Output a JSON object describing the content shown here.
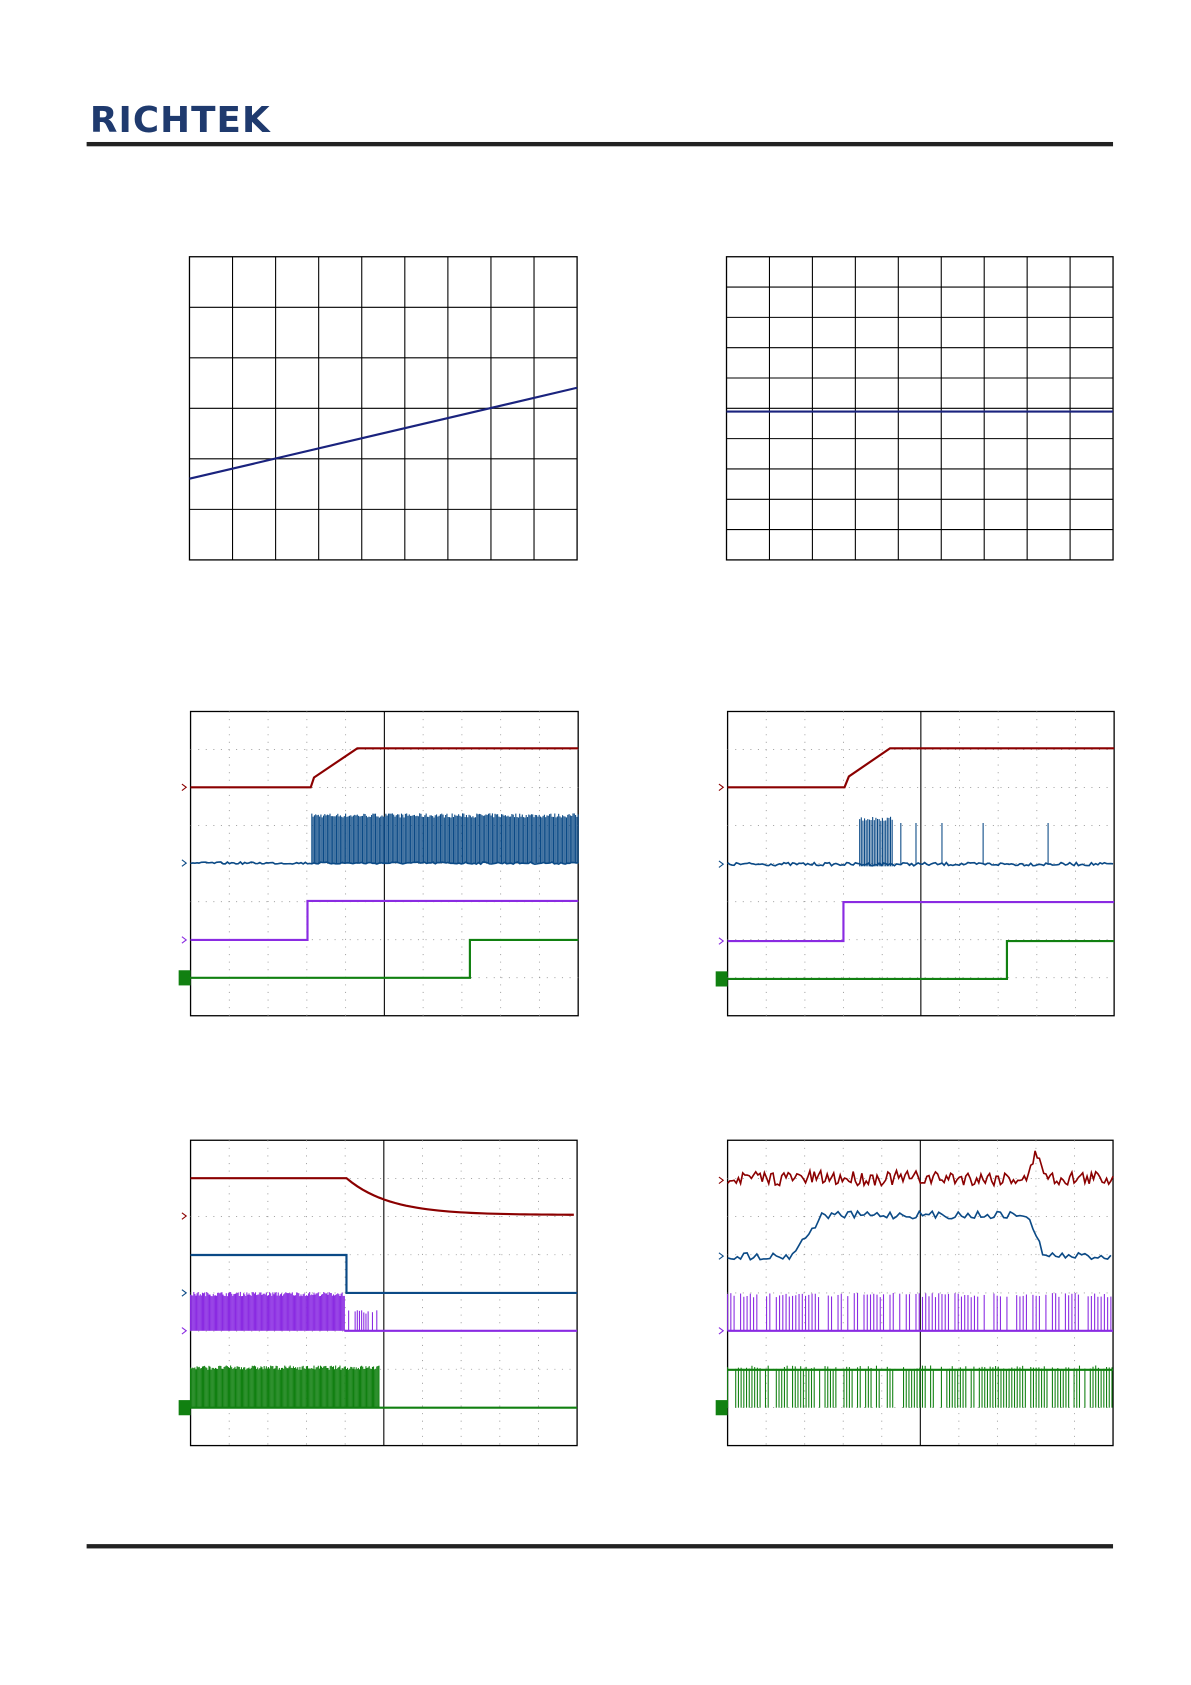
{
  "header": {
    "logo": "RICHTEK"
  }
}
